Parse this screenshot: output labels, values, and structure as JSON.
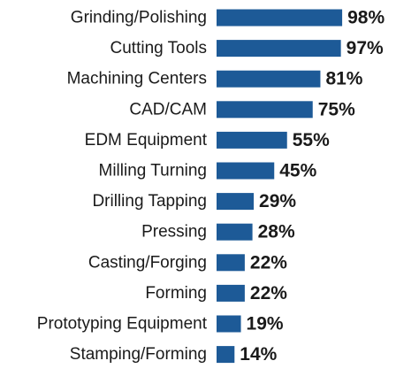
{
  "chart_data": {
    "type": "bar",
    "orientation": "horizontal",
    "categories": [
      "Grinding/Polishing",
      "Cutting Tools",
      "Machining Centers",
      "CAD/CAM",
      "EDM Equipment",
      "Milling Turning",
      "Drilling Tapping",
      "Pressing",
      "Casting/Forging",
      "Forming",
      "Prototyping Equipment",
      "Stamping/Forming"
    ],
    "values": [
      98,
      97,
      81,
      75,
      55,
      45,
      29,
      28,
      22,
      22,
      19,
      14
    ],
    "value_labels": [
      "98%",
      "97%",
      "81%",
      "75%",
      "55%",
      "45%",
      "29%",
      "28%",
      "22%",
      "22%",
      "19%",
      "14%"
    ],
    "xlim": [
      0,
      100
    ],
    "grid": false,
    "legend": "none",
    "colors": {
      "bar": "#1d5a97",
      "text": "#1a1a1a"
    }
  }
}
